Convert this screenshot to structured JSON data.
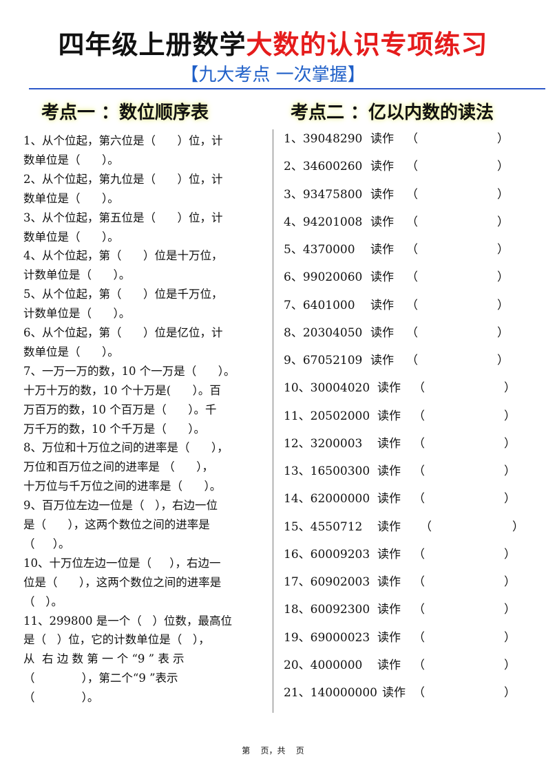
{
  "title": {
    "black": "四年级上册数学",
    "red": "大数的认识专项练习"
  },
  "subtitle": "【九大考点 一次掌握】",
  "colors": {
    "title_red": "#e51c1c",
    "subtitle_blue": "#1f5fc8",
    "rule_blue": "#2d58c9"
  },
  "section1": {
    "heading": "考点一 ：数位顺序表",
    "lines": [
      "1、从个位起，第六位是（      ）位，计",
      "数单位是（      ）。",
      "2、从个位起，第九位是（      ）位，计",
      "数单位是（      ）。",
      "3、从个位起，第五位是（      ）位，计",
      "数单位是（      ）。",
      "4、从个位起，第（      ）位是十万位，",
      "计数单位是（      ）。",
      "5、从个位起，第（      ）位是千万位，",
      "计数单位是（      ）。",
      "6、从个位起，第（      ）位是亿位，计",
      "数单位是（      ）。",
      "7、一万一万的数，10 个一万是（      ）。",
      "十万十万的数，10 个十万是(      ）。百",
      "万百万的数，10 个百万是（      ）。千",
      "万千万的数，10 个千万是（      ）。",
      "8、万位和十万位之间的进率是（      ），",
      "万位和百万位之间的进率是 （      ），",
      "十万位与千万位之间的进率是（      ）。",
      "9、百万位左边一位是（   ），右边一位",
      "是（      ），这两个数位之间的进率是",
      "（     ）。",
      "10、十万位左边一位是（     ），右边一",
      "位是（      ），这两个数位之间的进率是",
      "（   ）。",
      "11、299800 是一个（   ）位数，最高位",
      "是（   ）位，它的计数单位是（   ），",
      "从  右 边 数 第 一 个 “9 ” 表 示",
      "（             ），第二个“9 ”表示",
      "（             ）。"
    ]
  },
  "section2": {
    "heading": "考点二 ：亿以内数的读法",
    "read_label": "读作",
    "open_paren": "（",
    "close_paren": "）",
    "items": [
      "1、39048290",
      "2、34600260",
      "3、93475800",
      "4、94201008",
      "5、4370000",
      "6、99020060",
      "7、6401000",
      "8、20304050",
      "9、67052109",
      "10、30004020",
      "11、20502000",
      "12、3200003",
      "13、16500300",
      "14、62000000",
      "15、4550712",
      "16、60009203",
      "17、60902003",
      "18、60092300",
      "19、69000023",
      "20、4000000",
      "21、140000000"
    ]
  },
  "footer": "第    页，共    页"
}
